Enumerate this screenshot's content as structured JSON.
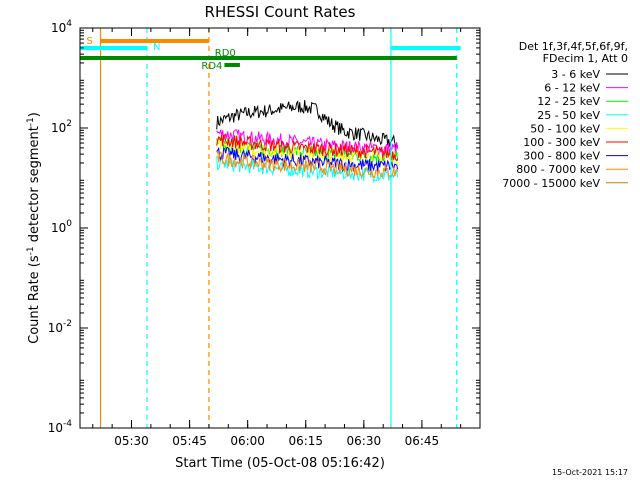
{
  "chart_data": {
    "type": "line",
    "title": "RHESSI Count Rates",
    "xlabel": "Start Time (05-Oct-08 05:16:42)",
    "ylabel": "Count Rate (s^-1 detector segment^-1)",
    "ylabel_parts": {
      "main": "Count Rate (s",
      "sup1": "-1",
      "mid": " detector segment",
      "sup2": "-1",
      "end": ")"
    },
    "y_scale": "log",
    "ylim": [
      0.0001,
      10000
    ],
    "xlim": [
      "05:16:42",
      "07:00:00"
    ],
    "x_ticks": [
      "05:30",
      "05:45",
      "06:00",
      "06:15",
      "06:30",
      "06:45"
    ],
    "y_ticks": [
      {
        "value": 0.0001,
        "base": "10",
        "exp": "-4"
      },
      {
        "value": 0.01,
        "base": "10",
        "exp": "-2"
      },
      {
        "value": 1,
        "base": "10",
        "exp": "0"
      },
      {
        "value": 100,
        "base": "10",
        "exp": "2"
      },
      {
        "value": 10000,
        "base": "10",
        "exp": "4"
      }
    ],
    "legend_position": "right",
    "legend_header": [
      "Det 1f,3f,4f,5f,6f,9f,",
      "FDecim 1, Att 0"
    ],
    "series": [
      {
        "name": "3 - 6 keV",
        "color": "#000000",
        "x": [
          "05:52",
          "05:56",
          "06:00",
          "06:05",
          "06:10",
          "06:14",
          "06:18",
          "06:21",
          "06:25",
          "06:29",
          "06:33",
          "06:36",
          "06:39"
        ],
        "values": [
          130,
          170,
          200,
          220,
          250,
          270,
          230,
          130,
          85,
          75,
          60,
          55,
          50
        ]
      },
      {
        "name": "6 - 12 keV",
        "color": "#ff00ff",
        "x": [
          "05:52",
          "06:00",
          "06:10",
          "06:20",
          "06:30",
          "06:39"
        ],
        "values": [
          80,
          65,
          55,
          45,
          40,
          38
        ]
      },
      {
        "name": "12 - 25 keV",
        "color": "#00ee00",
        "x": [
          "05:52",
          "06:00",
          "06:10",
          "06:20",
          "06:30",
          "06:39"
        ],
        "values": [
          50,
          40,
          35,
          30,
          28,
          25
        ]
      },
      {
        "name": "25 - 50 keV",
        "color": "#00ffff",
        "x": [
          "05:52",
          "06:00",
          "06:10",
          "06:20",
          "06:30",
          "06:39"
        ],
        "values": [
          20,
          17,
          15,
          13,
          12,
          11
        ]
      },
      {
        "name": "50 - 100 keV",
        "color": "#ffff00",
        "x": [
          "05:52",
          "06:00",
          "06:10",
          "06:20",
          "06:30",
          "06:39"
        ],
        "values": [
          45,
          38,
          33,
          30,
          27,
          25
        ]
      },
      {
        "name": "100 - 300 keV",
        "color": "#ff0000",
        "x": [
          "05:52",
          "06:00",
          "06:10",
          "06:20",
          "06:30",
          "06:39"
        ],
        "values": [
          60,
          50,
          42,
          38,
          34,
          30
        ]
      },
      {
        "name": "300 - 800 keV",
        "color": "#0000ff",
        "x": [
          "05:52",
          "06:00",
          "06:10",
          "06:20",
          "06:30",
          "06:39"
        ],
        "values": [
          32,
          27,
          23,
          20,
          18,
          17
        ]
      },
      {
        "name": "800 - 7000 keV",
        "color": "#ff8800",
        "x": [
          "05:52",
          "06:00",
          "06:10",
          "06:20",
          "06:30",
          "06:39"
        ],
        "values": [
          25,
          21,
          18,
          16,
          14,
          13
        ]
      },
      {
        "name": "7000 - 15000 keV",
        "color": "#c87800",
        "x": [],
        "values": []
      }
    ],
    "annotations": [
      {
        "label": "S",
        "color": "#ff8800",
        "from": "05:22",
        "to": "05:50"
      },
      {
        "label": "N",
        "color": "#00ffff",
        "from": "05:16:42",
        "to": "05:34"
      },
      {
        "label": "N",
        "color": "#00ffff",
        "from": "06:37",
        "to": "06:55"
      },
      {
        "label": "RD0",
        "color": "#008800",
        "from": "05:16:42",
        "to": "06:54"
      },
      {
        "label": "RD4",
        "color": "#008800",
        "from": "05:54",
        "to": "05:58"
      }
    ],
    "vertical_lines": [
      {
        "x": "05:22",
        "color": "#ff8800",
        "style": "solid"
      },
      {
        "x": "05:34",
        "color": "#00ffff",
        "style": "dashed"
      },
      {
        "x": "05:50",
        "color": "#ff8800",
        "style": "dashed"
      },
      {
        "x": "06:37",
        "color": "#00ffff",
        "style": "solid"
      },
      {
        "x": "06:54",
        "color": "#00ffff",
        "style": "dashed"
      }
    ],
    "footer": "15-Oct-2021 15:17",
    "grid": false
  }
}
